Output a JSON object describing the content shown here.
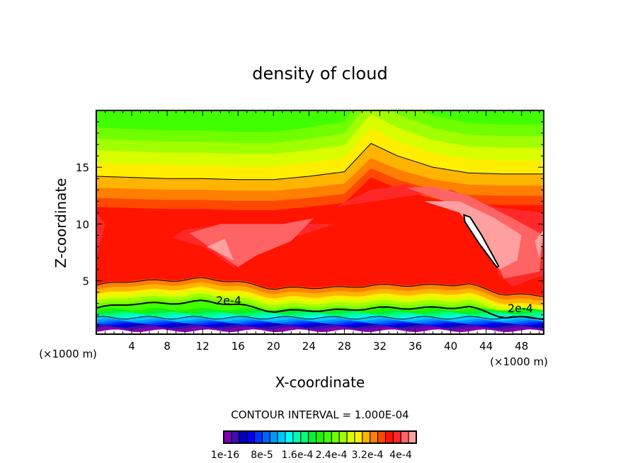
{
  "chart_data": {
    "type": "heatmap",
    "title": "density of cloud",
    "xlabel": "X-coordinate",
    "ylabel": "Z-coordinate",
    "x_unit_left": "(×1000 m)",
    "x_unit_right": "(×1000 m)",
    "xlim": [
      0,
      50.5
    ],
    "ylim": [
      0.3,
      20
    ],
    "xticks": [
      4,
      8,
      12,
      16,
      20,
      24,
      28,
      32,
      36,
      40,
      44,
      48
    ],
    "yticks": [
      5,
      10,
      15
    ],
    "contour_interval": "CONTOUR INTERVAL = 1.000E-04",
    "contour_labels": [
      "2e-4",
      "2e-4"
    ],
    "colorbar": {
      "colors": [
        "#8000b0",
        "#3a10b0",
        "#0000c0",
        "#0000ee",
        "#0032ff",
        "#0064ff",
        "#0096ff",
        "#00c8ff",
        "#00ffff",
        "#00ffb4",
        "#00ff78",
        "#00f03c",
        "#20f000",
        "#40ff00",
        "#70ff00",
        "#a0ff00",
        "#d8ff00",
        "#ffee00",
        "#ffb400",
        "#ff8000",
        "#ff4800",
        "#ff1400",
        "#ff2828",
        "#ff6464",
        "#ffa0a0"
      ],
      "labels": [
        "1e-16",
        "8e-5",
        "1.6e-4",
        "2.4e-4",
        "3.2e-4",
        "4e-4"
      ]
    },
    "field": {
      "x_grid": [
        0,
        4,
        8,
        12,
        16,
        20,
        24,
        28,
        31,
        34,
        38,
        42,
        46,
        50.5
      ],
      "upper_base": 14.2,
      "upper_anomaly": [
        0,
        -0.1,
        -0.2,
        -0.2,
        -0.3,
        -0.3,
        0,
        0.4,
        2.9,
        1.8,
        0.8,
        0.3,
        0.2,
        0.2
      ],
      "lower_profile": [
        4.6,
        5.0,
        5.0,
        5.2,
        4.9,
        4.3,
        4.4,
        4.4,
        4.6,
        4.6,
        4.6,
        4.7,
        3.8,
        3.7
      ],
      "background_index": 13,
      "upper_bands": [
        {
          "index": 14,
          "offset": 4.3,
          "scale": 1.3
        },
        {
          "index": 15,
          "offset": 3.3,
          "scale": 1.2
        },
        {
          "index": 16,
          "offset": 2.3,
          "scale": 1.1
        },
        {
          "index": 17,
          "offset": 1.2,
          "scale": 1.05
        },
        {
          "index": 18,
          "offset": 0.0,
          "scale": 1.0
        },
        {
          "index": 19,
          "offset": -1.0,
          "scale": 0.9
        },
        {
          "index": 20,
          "offset": -1.9,
          "scale": 0.9
        },
        {
          "index": 21,
          "offset": -2.7,
          "scale": 0.9
        }
      ],
      "lower_bands": [
        {
          "index": 20,
          "offset": 0.1
        },
        {
          "index": 19,
          "offset": 0.0
        },
        {
          "index": 18,
          "offset": -0.4
        },
        {
          "index": 17,
          "offset": -0.8
        },
        {
          "index": 16,
          "offset": -1.1
        },
        {
          "index": 15,
          "offset": -1.4
        },
        {
          "index": 14,
          "offset": -1.7
        },
        {
          "index": 13,
          "offset": -2.0
        },
        {
          "index": 12,
          "z": 2.5
        },
        {
          "index": 11,
          "z": 2.3
        },
        {
          "index": 10,
          "z": 2.15
        },
        {
          "index": 9,
          "z": 2.0
        },
        {
          "index": 8,
          "z": 1.85
        },
        {
          "index": 7,
          "z": 1.7
        },
        {
          "index": 6,
          "z": 1.55
        },
        {
          "index": 5,
          "z": 1.4
        },
        {
          "index": 4,
          "z": 1.3
        },
        {
          "index": 3,
          "z": 1.2
        },
        {
          "index": 2,
          "z": 1.1
        },
        {
          "index": 1,
          "z": 1.0
        },
        {
          "index": 0,
          "z": 0.85
        },
        {
          "index": -1,
          "z": 0.6
        }
      ],
      "blobs": [
        {
          "index": 22,
          "points": [
            [
              0,
              7
            ],
            [
              1,
              10
            ],
            [
              0,
              11
            ]
          ]
        },
        {
          "index": 22,
          "points": [
            [
              8.5,
              8.8
            ],
            [
              10,
              9.5
            ],
            [
              15,
              10
            ],
            [
              27,
              10
            ],
            [
              21,
              8.5
            ],
            [
              18.5,
              7.5
            ],
            [
              15.5,
              6.2
            ],
            [
              12,
              8
            ]
          ]
        },
        {
          "index": 23,
          "points": [
            [
              10.5,
              9.2
            ],
            [
              14,
              10
            ],
            [
              21,
              10
            ],
            [
              24.5,
              10.5
            ],
            [
              22,
              8.5
            ],
            [
              18,
              7.2
            ],
            [
              16,
              6.2
            ]
          ]
        },
        {
          "index": 24,
          "points": [
            [
              12.5,
              8
            ],
            [
              14.5,
              8.7
            ],
            [
              15.5,
              6.8
            ]
          ]
        },
        {
          "index": 22,
          "points": [
            [
              27,
              11.5
            ],
            [
              31,
              13
            ],
            [
              35,
              13.5
            ],
            [
              41,
              12
            ],
            [
              44,
              8
            ],
            [
              45.5,
              5.5
            ],
            [
              47,
              4.5
            ],
            [
              50.5,
              5.5
            ],
            [
              50.5,
              11
            ],
            [
              45,
              11.5
            ],
            [
              40,
              13
            ]
          ]
        },
        {
          "index": 23,
          "points": [
            [
              35,
              13.2
            ],
            [
              40,
              11.8
            ],
            [
              43,
              9.5
            ],
            [
              45,
              7
            ],
            [
              46,
              5.2
            ],
            [
              50,
              5.8
            ],
            [
              50.5,
              9
            ],
            [
              47,
              10.5
            ],
            [
              42,
              12.5
            ],
            [
              38,
              13.3
            ]
          ]
        },
        {
          "index": 24,
          "points": [
            [
              37,
              12
            ],
            [
              41,
              11
            ],
            [
              44,
              8
            ],
            [
              45.5,
              6
            ],
            [
              47.5,
              6.8
            ],
            [
              48,
              9
            ],
            [
              45,
              10.5
            ],
            [
              41,
              12
            ]
          ]
        },
        {
          "index": 24,
          "points": [
            [
              50,
              7
            ],
            [
              49.5,
              8.5
            ],
            [
              50.5,
              9.5
            ]
          ]
        }
      ],
      "white_lens": [
        [
          41.5,
          10.8
        ],
        [
          42.2,
          10.6
        ],
        [
          43.5,
          9
        ],
        [
          45.4,
          6.3
        ],
        [
          45.2,
          6.2
        ],
        [
          43.2,
          8.3
        ],
        [
          41.6,
          10.2
        ]
      ]
    }
  }
}
